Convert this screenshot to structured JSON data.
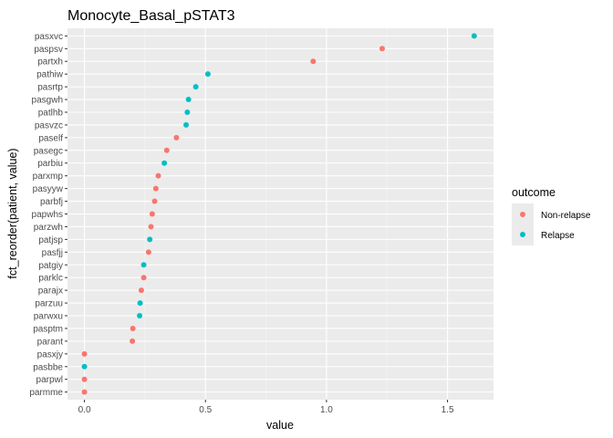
{
  "chart_data": {
    "type": "scatter",
    "title": "Monocyte_Basal_pSTAT3",
    "xlabel": "value",
    "ylabel": "fct_reorder(patient, value)",
    "xlim": [
      -0.07,
      1.69
    ],
    "x_ticks": [
      {
        "value": 0,
        "label": "0.0"
      },
      {
        "value": 0.5,
        "label": "0.5"
      },
      {
        "value": 1,
        "label": "1.0"
      },
      {
        "value": 1.5,
        "label": "1.5"
      }
    ],
    "grid": true,
    "legend": {
      "title": "outcome",
      "placement": "right",
      "entries": [
        {
          "label": "Non-relapse",
          "color": "#F8766D"
        },
        {
          "label": "Relapse",
          "color": "#00BFC4"
        }
      ]
    },
    "colors": {
      "Non-relapse": "#F8766D",
      "Relapse": "#00BFC4"
    },
    "points": [
      {
        "patient": "pasxvc",
        "value": 1.61,
        "outcome": "Relapse"
      },
      {
        "patient": "paspsv",
        "value": 1.23,
        "outcome": "Non-relapse"
      },
      {
        "patient": "partxh",
        "value": 0.945,
        "outcome": "Non-relapse"
      },
      {
        "patient": "pathiw",
        "value": 0.51,
        "outcome": "Relapse"
      },
      {
        "patient": "pasrtp",
        "value": 0.46,
        "outcome": "Relapse"
      },
      {
        "patient": "pasgwh",
        "value": 0.43,
        "outcome": "Relapse"
      },
      {
        "patient": "patlhb",
        "value": 0.425,
        "outcome": "Relapse"
      },
      {
        "patient": "pasvzc",
        "value": 0.42,
        "outcome": "Relapse"
      },
      {
        "patient": "paself",
        "value": 0.38,
        "outcome": "Non-relapse"
      },
      {
        "patient": "pasegc",
        "value": 0.34,
        "outcome": "Non-relapse"
      },
      {
        "patient": "parbiu",
        "value": 0.33,
        "outcome": "Relapse"
      },
      {
        "patient": "parxmp",
        "value": 0.305,
        "outcome": "Non-relapse"
      },
      {
        "patient": "pasyyw",
        "value": 0.295,
        "outcome": "Non-relapse"
      },
      {
        "patient": "parbfj",
        "value": 0.29,
        "outcome": "Non-relapse"
      },
      {
        "patient": "papwhs",
        "value": 0.28,
        "outcome": "Non-relapse"
      },
      {
        "patient": "parzwh",
        "value": 0.275,
        "outcome": "Non-relapse"
      },
      {
        "patient": "patjsp",
        "value": 0.27,
        "outcome": "Relapse"
      },
      {
        "patient": "pasfjj",
        "value": 0.265,
        "outcome": "Non-relapse"
      },
      {
        "patient": "patgiy",
        "value": 0.245,
        "outcome": "Relapse"
      },
      {
        "patient": "parklc",
        "value": 0.245,
        "outcome": "Non-relapse"
      },
      {
        "patient": "parajx",
        "value": 0.235,
        "outcome": "Non-relapse"
      },
      {
        "patient": "parzuu",
        "value": 0.23,
        "outcome": "Relapse"
      },
      {
        "patient": "parwxu",
        "value": 0.228,
        "outcome": "Relapse"
      },
      {
        "patient": "pasptm",
        "value": 0.2,
        "outcome": "Non-relapse"
      },
      {
        "patient": "parant",
        "value": 0.198,
        "outcome": "Non-relapse"
      },
      {
        "patient": "pasxjy",
        "value": 0.0,
        "outcome": "Non-relapse"
      },
      {
        "patient": "pasbbe",
        "value": 0.0,
        "outcome": "Relapse"
      },
      {
        "patient": "parpwl",
        "value": 0.0,
        "outcome": "Non-relapse"
      },
      {
        "patient": "parmme",
        "value": 0.0,
        "outcome": "Non-relapse"
      }
    ]
  }
}
